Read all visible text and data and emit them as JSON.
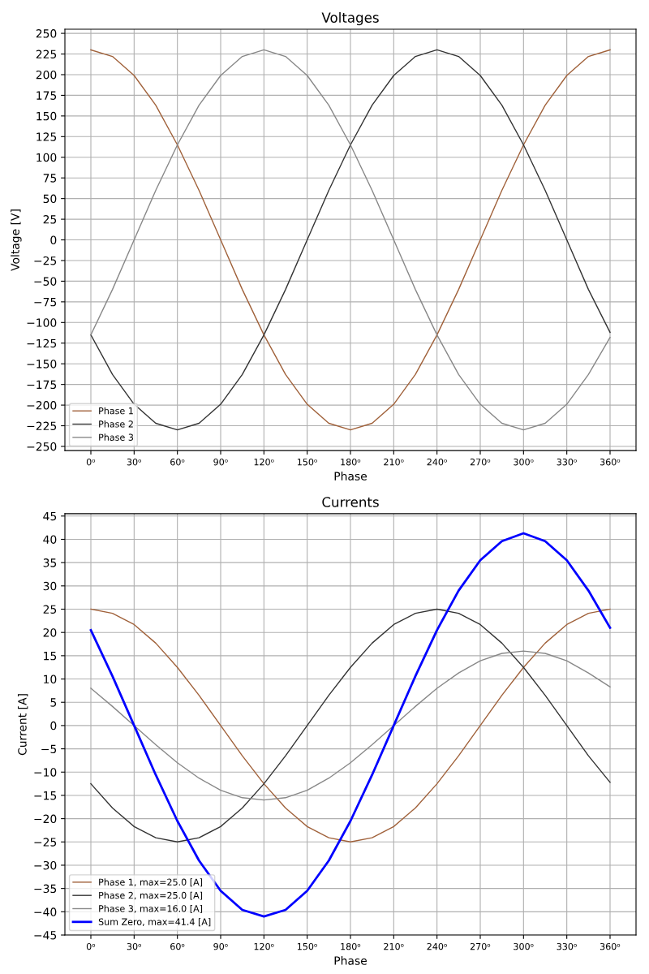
{
  "chart_data": [
    {
      "type": "line",
      "title": "Voltages",
      "xlabel": "Phase",
      "ylabel": "Voltage [V]",
      "x": [
        0,
        15,
        30,
        45,
        60,
        75,
        90,
        105,
        120,
        135,
        150,
        165,
        180,
        195,
        210,
        225,
        240,
        255,
        270,
        285,
        300,
        315,
        330,
        345,
        360
      ],
      "xlim": [
        -18,
        378
      ],
      "xticks": [
        {
          "value": 0,
          "label": "0ᵒ"
        },
        {
          "value": 30,
          "label": "30ᵒ"
        },
        {
          "value": 60,
          "label": "60ᵒ"
        },
        {
          "value": 90,
          "label": "90ᵒ"
        },
        {
          "value": 120,
          "label": "120ᵒ"
        },
        {
          "value": 150,
          "label": "150ᵒ"
        },
        {
          "value": 180,
          "label": "180ᵒ"
        },
        {
          "value": 210,
          "label": "210ᵒ"
        },
        {
          "value": 240,
          "label": "240ᵒ"
        },
        {
          "value": 270,
          "label": "270ᵒ"
        },
        {
          "value": 300,
          "label": "300ᵒ"
        },
        {
          "value": 330,
          "label": "330ᵒ"
        },
        {
          "value": 360,
          "label": "360ᵒ"
        }
      ],
      "ylim": [
        -255,
        255
      ],
      "yticks": [
        {
          "value": -250,
          "label": "−250"
        },
        {
          "value": -225,
          "label": "−225"
        },
        {
          "value": -200,
          "label": "−200"
        },
        {
          "value": -175,
          "label": "−175"
        },
        {
          "value": -150,
          "label": "−150"
        },
        {
          "value": -125,
          "label": "−125"
        },
        {
          "value": -100,
          "label": "−100"
        },
        {
          "value": -75,
          "label": "−75"
        },
        {
          "value": -50,
          "label": "−50"
        },
        {
          "value": -25,
          "label": "−25"
        },
        0,
        25,
        50,
        75,
        100,
        125,
        150,
        175,
        200,
        225,
        250
      ],
      "grid": true,
      "legend": "lower left",
      "series": [
        {
          "name": "Phase 1",
          "color": "#a0613a",
          "values": [
            230,
            222,
            199,
            163,
            115,
            60,
            0,
            -60,
            -115,
            -163,
            -199,
            -222,
            -230,
            -222,
            -199,
            -163,
            -115,
            -60,
            0,
            60,
            115,
            163,
            199,
            222,
            230
          ]
        },
        {
          "name": "Phase 2",
          "color": "#333333",
          "values": [
            -115,
            -163,
            -199,
            -222,
            -230,
            -222,
            -199,
            -163,
            -115,
            -60,
            0,
            60,
            115,
            163,
            199,
            222,
            230,
            222,
            199,
            163,
            115,
            60,
            0,
            -60,
            -112
          ]
        },
        {
          "name": "Phase 3",
          "color": "#888888",
          "values": [
            -115,
            -60,
            0,
            60,
            115,
            163,
            199,
            222,
            230,
            222,
            199,
            163,
            115,
            60,
            0,
            -60,
            -115,
            -163,
            -199,
            -222,
            -230,
            -222,
            -199,
            -163,
            -118
          ]
        }
      ]
    },
    {
      "type": "line",
      "title": "Currents",
      "xlabel": "Phase",
      "ylabel": "Current [A]",
      "x": [
        0,
        15,
        30,
        45,
        60,
        75,
        90,
        105,
        120,
        135,
        150,
        165,
        180,
        195,
        210,
        225,
        240,
        255,
        270,
        285,
        300,
        315,
        330,
        345,
        360
      ],
      "xlim": [
        -18,
        378
      ],
      "xticks": [
        {
          "value": 0,
          "label": "0ᵒ"
        },
        {
          "value": 30,
          "label": "30ᵒ"
        },
        {
          "value": 60,
          "label": "60ᵒ"
        },
        {
          "value": 90,
          "label": "90ᵒ"
        },
        {
          "value": 120,
          "label": "120ᵒ"
        },
        {
          "value": 150,
          "label": "150ᵒ"
        },
        {
          "value": 180,
          "label": "180ᵒ"
        },
        {
          "value": 210,
          "label": "210ᵒ"
        },
        {
          "value": 240,
          "label": "240ᵒ"
        },
        {
          "value": 270,
          "label": "270ᵒ"
        },
        {
          "value": 300,
          "label": "300ᵒ"
        },
        {
          "value": 330,
          "label": "330ᵒ"
        },
        {
          "value": 360,
          "label": "360ᵒ"
        }
      ],
      "ylim": [
        -45,
        45.5
      ],
      "yticks": [
        {
          "value": -45,
          "label": "−45"
        },
        {
          "value": -40,
          "label": "−40"
        },
        {
          "value": -35,
          "label": "−35"
        },
        {
          "value": -30,
          "label": "−30"
        },
        {
          "value": -25,
          "label": "−25"
        },
        {
          "value": -20,
          "label": "−20"
        },
        {
          "value": -15,
          "label": "−15"
        },
        {
          "value": -10,
          "label": "−10"
        },
        {
          "value": -5,
          "label": "−5"
        },
        0,
        5,
        10,
        15,
        20,
        25,
        30,
        35,
        40,
        45
      ],
      "grid": true,
      "legend": "lower left",
      "series": [
        {
          "name": "Phase 1, max=25.0 [A]",
          "color": "#a0613a",
          "values": [
            25,
            24.1,
            21.7,
            17.7,
            12.5,
            6.5,
            0,
            -6.5,
            -12.5,
            -17.7,
            -21.7,
            -24.1,
            -25,
            -24.1,
            -21.7,
            -17.7,
            -12.5,
            -6.5,
            0,
            6.5,
            12.5,
            17.7,
            21.7,
            24.1,
            25
          ]
        },
        {
          "name": "Phase 2, max=25.0 [A]",
          "color": "#333333",
          "values": [
            -12.5,
            -17.7,
            -21.7,
            -24.1,
            -25,
            -24.1,
            -21.7,
            -17.7,
            -12.5,
            -6.5,
            0,
            6.5,
            12.5,
            17.7,
            21.7,
            24.1,
            25,
            24.1,
            21.7,
            17.7,
            12.5,
            6.5,
            0,
            -6.5,
            -12.2
          ]
        },
        {
          "name": "Phase 3, max=16.0 [A]",
          "color": "#888888",
          "values": [
            8,
            4.1,
            0,
            -4.1,
            -8,
            -11.3,
            -13.9,
            -15.5,
            -16,
            -15.5,
            -13.9,
            -11.3,
            -8,
            -4.1,
            0,
            4.1,
            8,
            11.3,
            13.9,
            15.5,
            16,
            15.5,
            13.9,
            11.3,
            8.3
          ]
        },
        {
          "name": "Sum Zero, max=41.4 [A]",
          "color": "#0000ff",
          "values": [
            20.5,
            10.6,
            0,
            -10.6,
            -20.5,
            -29,
            -35.5,
            -39.6,
            -41,
            -39.6,
            -35.5,
            -29,
            -20.5,
            -10.6,
            0,
            10.6,
            20.5,
            29,
            35.5,
            39.6,
            41.3,
            39.6,
            35.5,
            29,
            21
          ]
        }
      ]
    }
  ]
}
